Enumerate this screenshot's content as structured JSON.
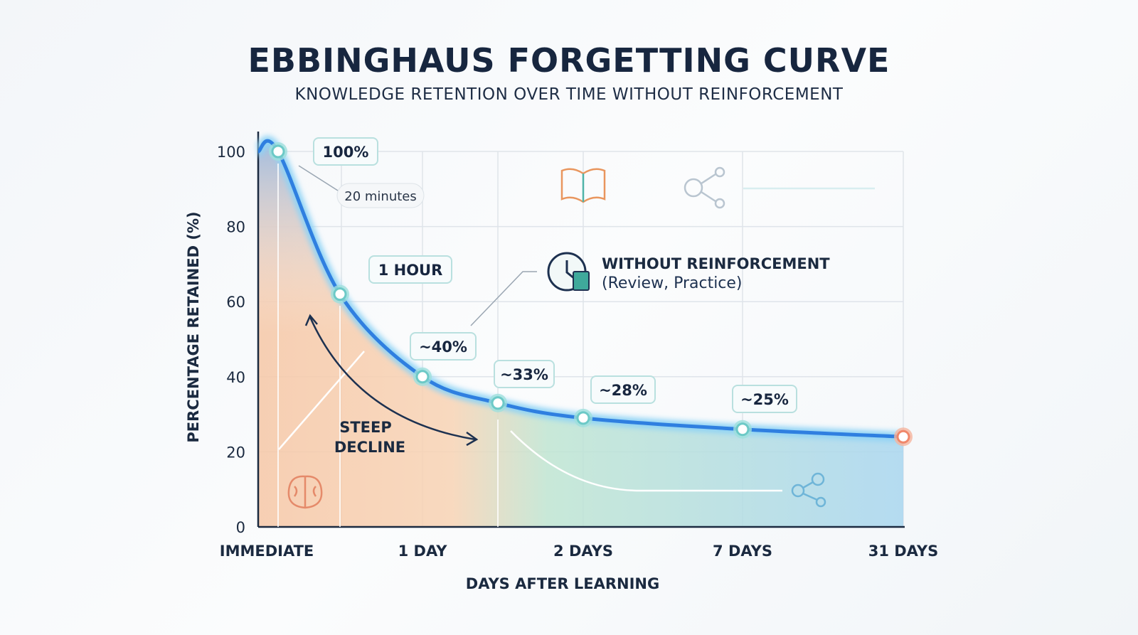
{
  "title": "EBBINGHAUS FORGETTING CURVE",
  "subtitle": "KNOWLEDGE RETENTION OVER TIME WITHOUT REINFORCEMENT",
  "chart_data": {
    "type": "line",
    "title": "EBBINGHAUS FORGETTING CURVE",
    "subtitle": "KNOWLEDGE RETENTION OVER TIME WITHOUT REINFORCEMENT",
    "xlabel": "DAYS AFTER LEARNING",
    "ylabel": "PERCENTAGE RETAINED (%)",
    "ylim": [
      0,
      100
    ],
    "y_ticks": [
      "0",
      "20",
      "40",
      "60",
      "80",
      "100"
    ],
    "x_ticks": [
      "IMMEDIATE",
      "1 DAY",
      "2 DAYS",
      "7 DAYS",
      "31 DAYS"
    ],
    "grid": true,
    "points": [
      {
        "label": "100%",
        "value": 100
      },
      {
        "label": "1 HOUR",
        "value": 62
      },
      {
        "label": "~40%",
        "value": 40
      },
      {
        "label": "~33%",
        "value": 33
      },
      {
        "label": "~28%",
        "value": 29
      },
      {
        "label": "~25%",
        "value": 26
      },
      {
        "label": "",
        "value": 24
      }
    ],
    "annotations": {
      "twenty_minutes": "20 minutes",
      "steep_decline_1": "STEEP",
      "steep_decline_2": "DECLINE",
      "legend_title": "WITHOUT REINFORCEMENT",
      "legend_sub": "(Review, Practice)"
    },
    "colors": {
      "curve": "#2f7fe0",
      "glow": "#8fd3f5",
      "end_point": "#f0876a",
      "text": "#17263f"
    }
  }
}
